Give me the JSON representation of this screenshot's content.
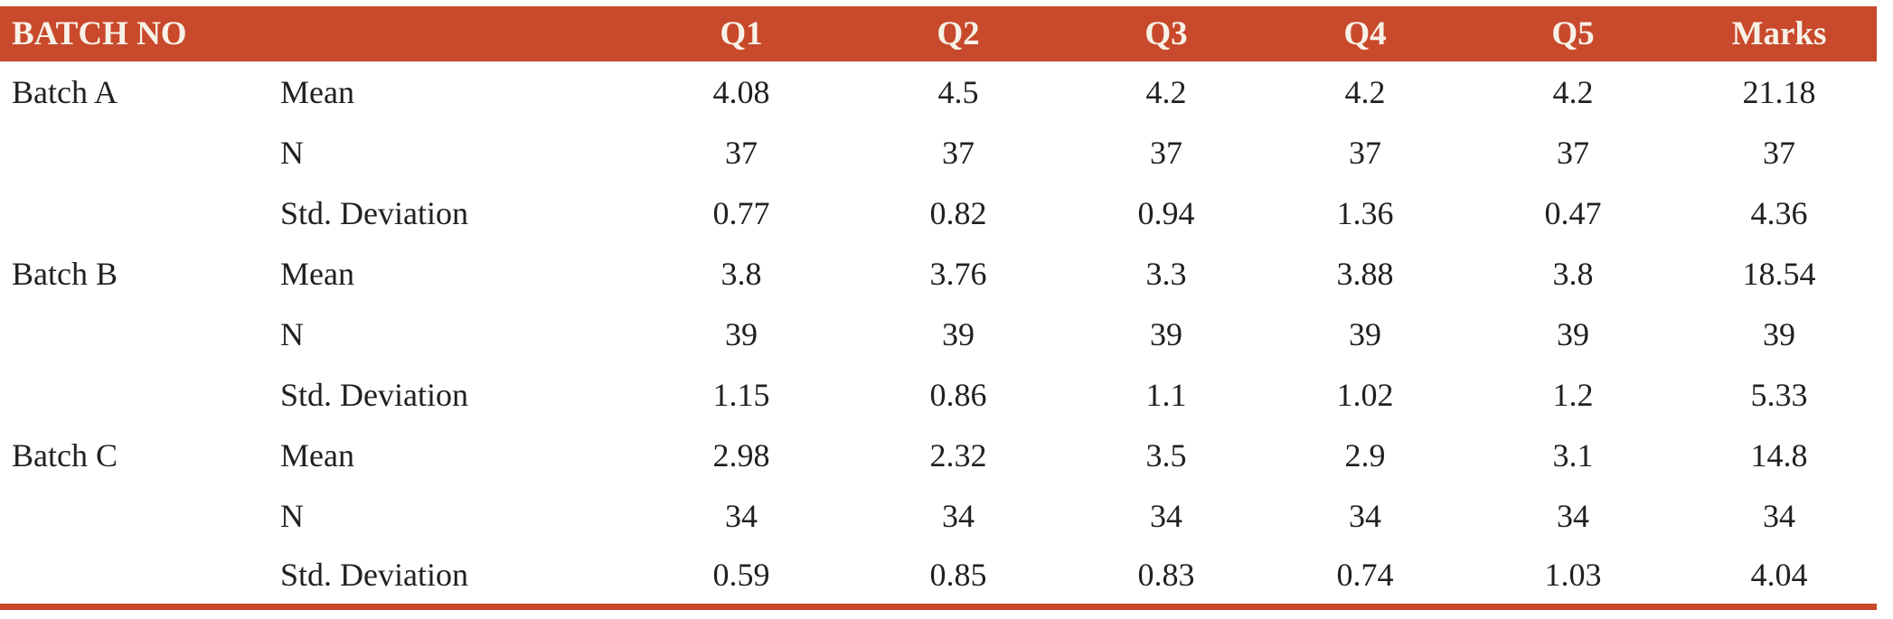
{
  "colors": {
    "header_bg": "#c8492b",
    "header_text": "#f8f1e7",
    "body_text": "#231f20",
    "bottom_rule": "#c8492b",
    "page_bg": "#ffffff"
  },
  "table": {
    "header": {
      "batch_label": "BATCH NO",
      "columns": [
        "Q1",
        "Q2",
        "Q3",
        "Q4",
        "Q5",
        "Marks"
      ]
    },
    "groups": [
      {
        "batch": "Batch A",
        "rows": [
          {
            "stat": "Mean",
            "values": [
              "4.08",
              "4.5",
              "4.2",
              "4.2",
              "4.2",
              "21.18"
            ]
          },
          {
            "stat": "N",
            "values": [
              "37",
              "37",
              "37",
              "37",
              "37",
              "37"
            ]
          },
          {
            "stat": "Std. Deviation",
            "values": [
              "0.77",
              "0.82",
              "0.94",
              "1.36",
              "0.47",
              "4.36"
            ]
          }
        ]
      },
      {
        "batch": "Batch B",
        "rows": [
          {
            "stat": "Mean",
            "values": [
              "3.8",
              "3.76",
              "3.3",
              "3.88",
              "3.8",
              "18.54"
            ]
          },
          {
            "stat": "N",
            "values": [
              "39",
              "39",
              "39",
              "39",
              "39",
              "39"
            ]
          },
          {
            "stat": "Std. Deviation",
            "values": [
              "1.15",
              "0.86",
              "1.1",
              "1.02",
              "1.2",
              "5.33"
            ]
          }
        ]
      },
      {
        "batch": "Batch C",
        "rows": [
          {
            "stat": "Mean",
            "values": [
              "2.98",
              "2.32",
              "3.5",
              "2.9",
              "3.1",
              "14.8"
            ]
          },
          {
            "stat": "N",
            "values": [
              "34",
              "34",
              "34",
              "34",
              "34",
              "34"
            ]
          },
          {
            "stat": "Std. Deviation",
            "values": [
              "0.59",
              "0.85",
              "0.83",
              "0.74",
              "1.03",
              "4.04"
            ]
          }
        ]
      }
    ]
  }
}
